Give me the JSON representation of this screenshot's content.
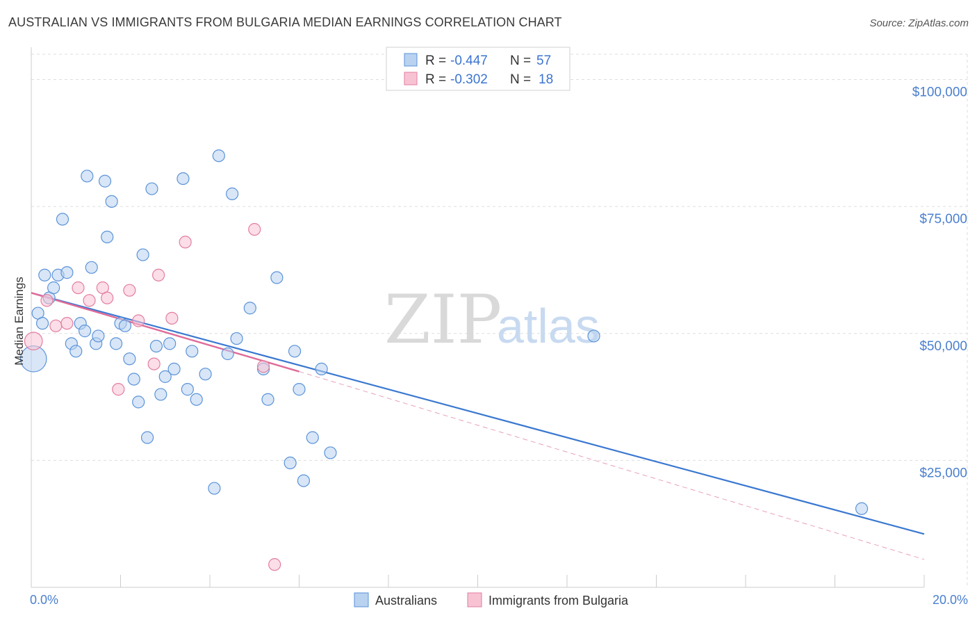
{
  "title": "AUSTRALIAN VS IMMIGRANTS FROM BULGARIA MEDIAN EARNINGS CORRELATION CHART",
  "source": "Source: ZipAtlas.com",
  "watermark": {
    "zip": "ZIP",
    "atlas": "atlas"
  },
  "colors": {
    "blue": "#5b93d8",
    "blue_fill": "#b8d2f0",
    "pink": "#e37da0",
    "pink_fill": "#f7c3d3",
    "grid": "#dddddd",
    "tick": "#4a7fcf"
  },
  "legend": {
    "rows": [
      {
        "r_label": "R =",
        "r_value": "-0.447",
        "n_label": "N =",
        "n_value": "57"
      },
      {
        "r_label": "R =",
        "r_value": "-0.302",
        "n_label": "N =",
        "n_value": "18"
      }
    ]
  },
  "chart_data": {
    "type": "scatter",
    "title": "AUSTRALIAN VS IMMIGRANTS FROM BULGARIA MEDIAN EARNINGS CORRELATION CHART",
    "xlabel": "",
    "ylabel": "Median Earnings",
    "xlim": [
      0,
      20
    ],
    "ylim": [
      0,
      105000
    ],
    "x_tick_labels": [
      "0.0%",
      "20.0%"
    ],
    "y_ticks": [
      25000,
      50000,
      75000,
      100000
    ],
    "y_tick_labels": [
      "$25,000",
      "$50,000",
      "$75,000",
      "$100,000"
    ],
    "grid": true,
    "legend_placement": "top-center",
    "series": [
      {
        "name": "Australians",
        "color": "#5b93d8",
        "trend": {
          "x0": 0,
          "y0": 58000,
          "x1": 20,
          "y1": 10500,
          "style": "solid"
        },
        "points": [
          [
            0.05,
            45000,
            2.2
          ],
          [
            0.15,
            54000,
            1
          ],
          [
            0.25,
            52000,
            1
          ],
          [
            0.3,
            61500,
            1
          ],
          [
            0.4,
            57000,
            1
          ],
          [
            0.5,
            59000,
            1
          ],
          [
            0.6,
            61500,
            1
          ],
          [
            0.7,
            72500,
            1
          ],
          [
            0.8,
            62000,
            1
          ],
          [
            0.9,
            48000,
            1
          ],
          [
            1.0,
            46500,
            1
          ],
          [
            1.1,
            52000,
            1
          ],
          [
            1.2,
            50500,
            1
          ],
          [
            1.25,
            81000,
            1
          ],
          [
            1.35,
            63000,
            1
          ],
          [
            1.45,
            48000,
            1
          ],
          [
            1.5,
            49500,
            1
          ],
          [
            1.65,
            80000,
            1
          ],
          [
            1.7,
            69000,
            1
          ],
          [
            1.8,
            76000,
            1
          ],
          [
            1.9,
            48000,
            1
          ],
          [
            2.0,
            52000,
            1
          ],
          [
            2.1,
            51500,
            1
          ],
          [
            2.2,
            45000,
            1
          ],
          [
            2.3,
            41000,
            1
          ],
          [
            2.4,
            36500,
            1
          ],
          [
            2.5,
            65500,
            1
          ],
          [
            2.6,
            29500,
            1
          ],
          [
            2.7,
            78500,
            1
          ],
          [
            2.8,
            47500,
            1
          ],
          [
            2.9,
            38000,
            1
          ],
          [
            3.0,
            41500,
            1
          ],
          [
            3.1,
            48000,
            1
          ],
          [
            3.2,
            43000,
            1
          ],
          [
            3.4,
            80500,
            1
          ],
          [
            3.5,
            39000,
            1
          ],
          [
            3.6,
            46500,
            1
          ],
          [
            3.7,
            37000,
            1
          ],
          [
            3.9,
            42000,
            1
          ],
          [
            4.1,
            19500,
            1
          ],
          [
            4.2,
            85000,
            1
          ],
          [
            4.4,
            46000,
            1
          ],
          [
            4.5,
            77500,
            1
          ],
          [
            4.6,
            49000,
            1
          ],
          [
            4.9,
            55000,
            1
          ],
          [
            5.2,
            43000,
            1
          ],
          [
            5.3,
            37000,
            1
          ],
          [
            5.5,
            61000,
            1
          ],
          [
            5.8,
            24500,
            1
          ],
          [
            5.9,
            46500,
            1
          ],
          [
            6.0,
            39000,
            1
          ],
          [
            6.1,
            21000,
            1
          ],
          [
            6.3,
            29500,
            1
          ],
          [
            6.5,
            43000,
            1
          ],
          [
            6.7,
            26500,
            1
          ],
          [
            12.6,
            49500,
            1
          ],
          [
            18.6,
            15500,
            1
          ]
        ]
      },
      {
        "name": "Immigrants from Bulgaria",
        "color": "#e37da0",
        "trend": {
          "x0": 0,
          "y0": 58000,
          "x1": 6,
          "y1": 42500,
          "style": "solid",
          "extended_to": [
            20,
            5500
          ]
        },
        "points": [
          [
            0.05,
            48500,
            1.5
          ],
          [
            0.35,
            56500,
            1
          ],
          [
            0.55,
            51500,
            1
          ],
          [
            0.8,
            52000,
            1
          ],
          [
            1.05,
            59000,
            1
          ],
          [
            1.3,
            56500,
            1
          ],
          [
            1.6,
            59000,
            1
          ],
          [
            1.7,
            57000,
            1
          ],
          [
            1.95,
            39000,
            1
          ],
          [
            2.2,
            58500,
            1
          ],
          [
            2.4,
            52500,
            1
          ],
          [
            2.75,
            44000,
            1
          ],
          [
            2.85,
            61500,
            1
          ],
          [
            3.15,
            53000,
            1
          ],
          [
            3.45,
            68000,
            1
          ],
          [
            5.0,
            70500,
            1
          ],
          [
            5.2,
            43500,
            1
          ],
          [
            5.45,
            4500,
            1
          ]
        ]
      }
    ]
  }
}
